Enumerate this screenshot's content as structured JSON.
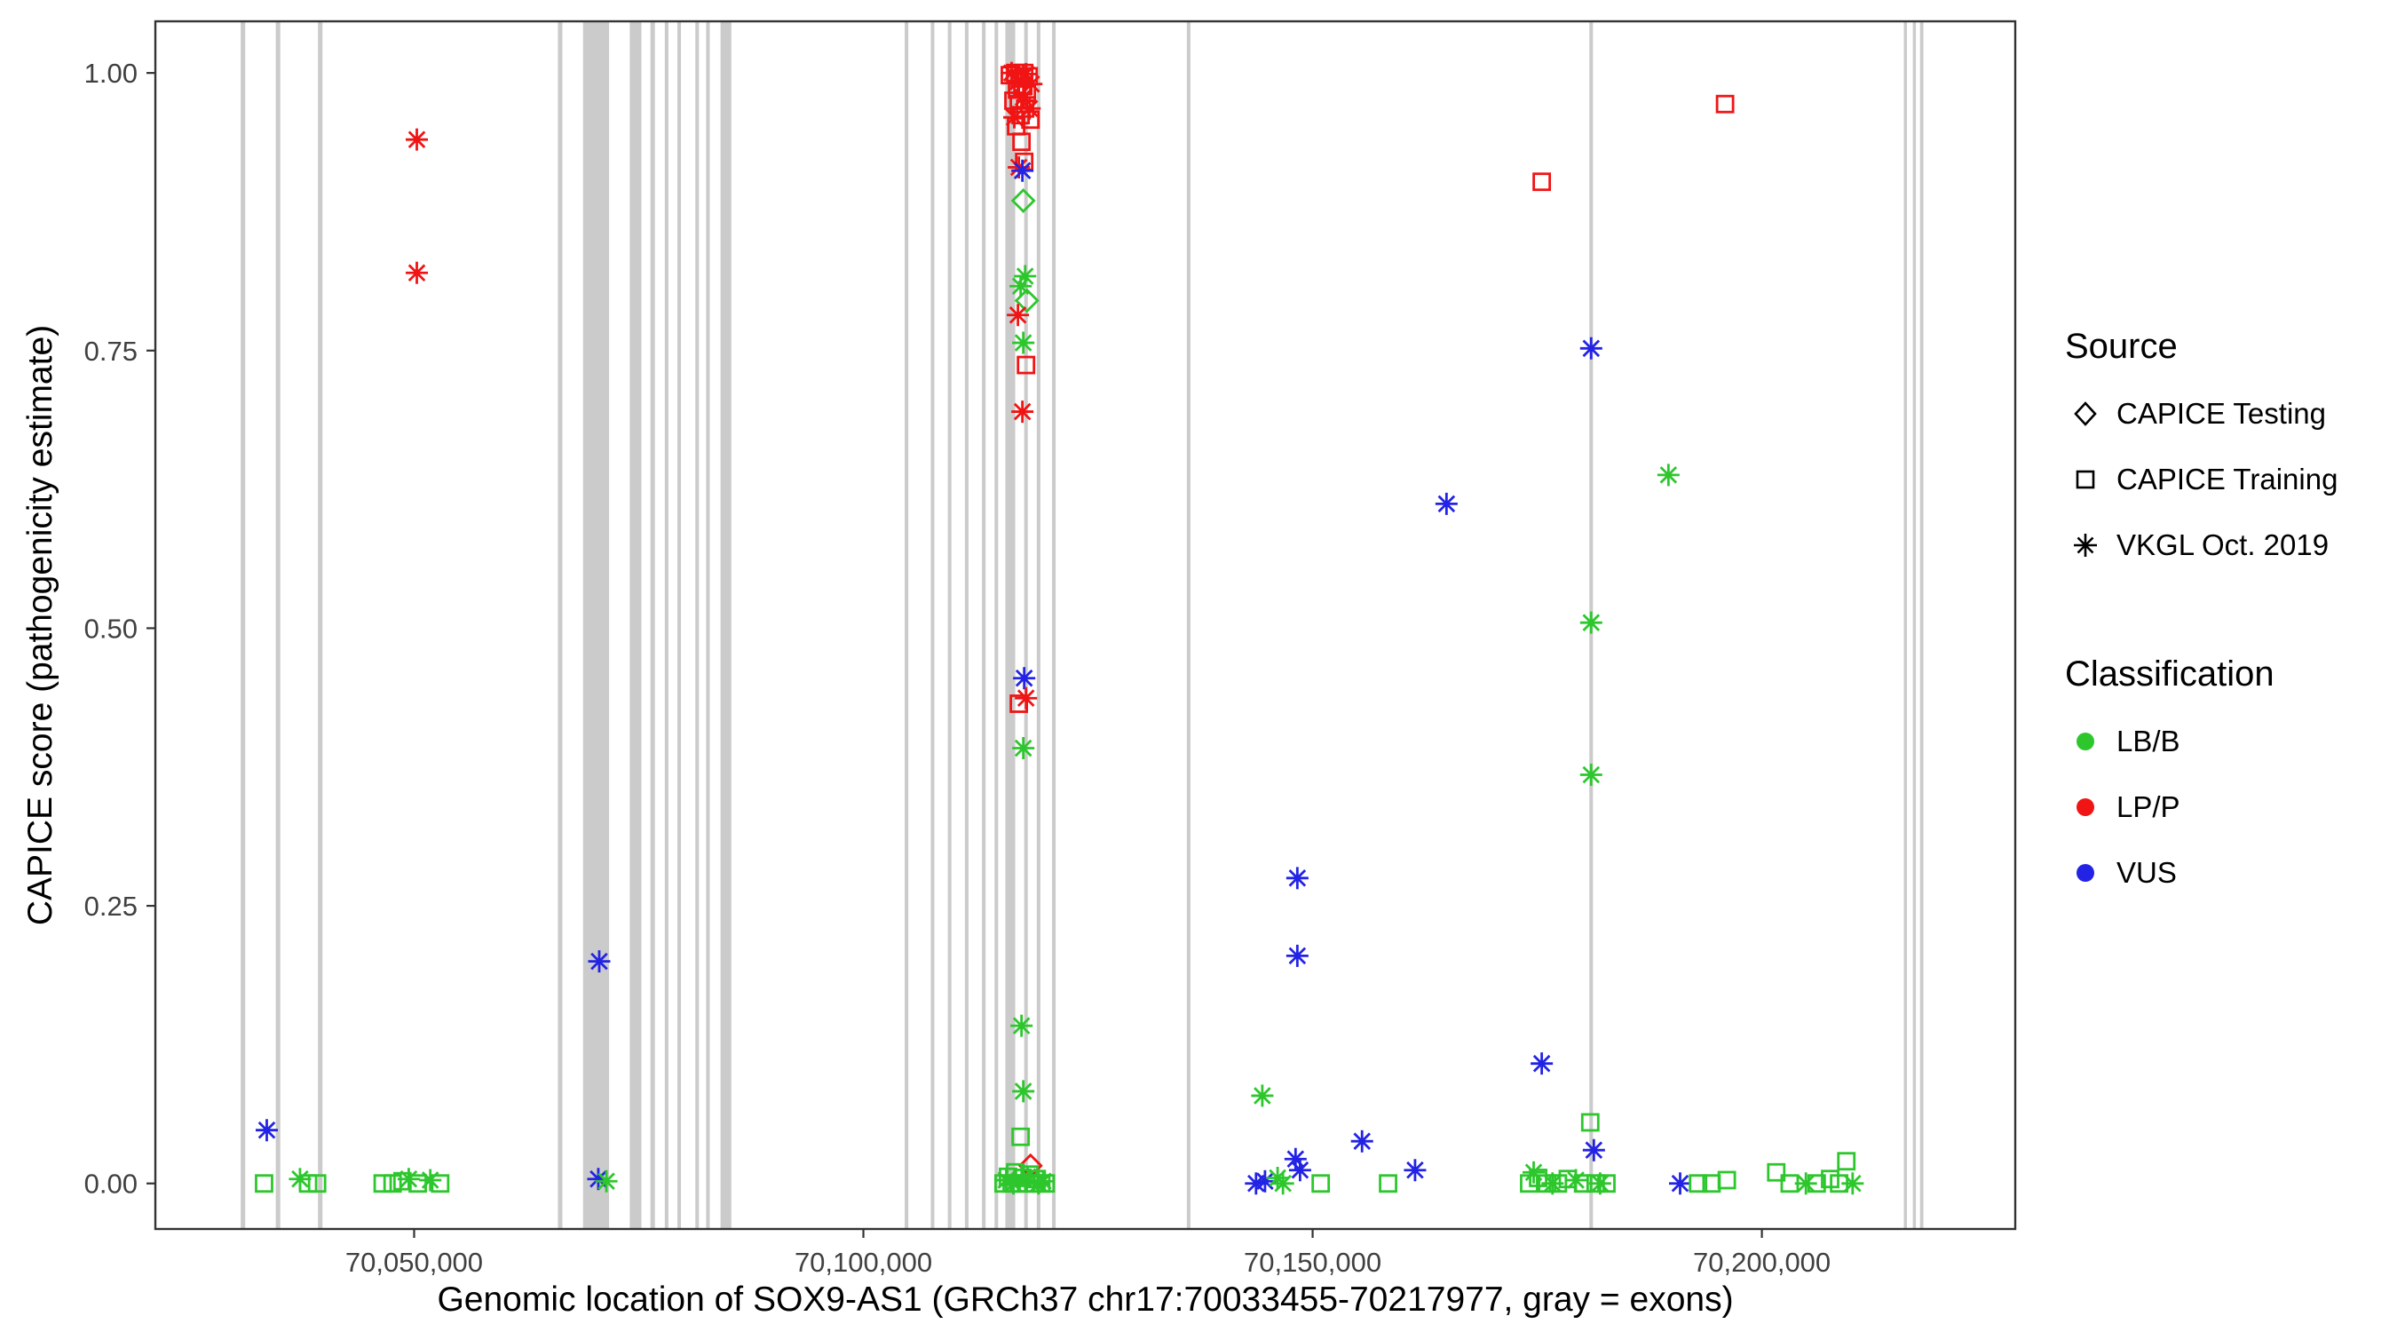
{
  "legend": {
    "source": {
      "title": "Source",
      "items": [
        {
          "label": "CAPICE Testing",
          "shape": "diamond"
        },
        {
          "label": "CAPICE Training",
          "shape": "square"
        },
        {
          "label": "VKGL Oct. 2019",
          "shape": "asterisk"
        }
      ]
    },
    "classification": {
      "title": "Classification",
      "items": [
        {
          "label": "LB/B",
          "color": "#2DC72D"
        },
        {
          "label": "LP/P",
          "color": "#F01414"
        },
        {
          "label": "VUS",
          "color": "#2323E6"
        }
      ]
    }
  },
  "encoding": {
    "shapes": {
      "test": "diamond",
      "train": "square",
      "vkgl": "asterisk"
    },
    "colors": {
      "LB/B": "#2DC72D",
      "LP/P": "#F01414",
      "VUS": "#2323E6"
    }
  },
  "chart_data": {
    "type": "scatter",
    "title": "",
    "xlabel": "Genomic location of SOX9-AS1 (GRCh37 chr17:70033455-70217977, gray = exons)",
    "ylabel": "CAPICE score (pathogenicity estimate)",
    "x_domain": [
      70021200,
      70228200
    ],
    "y_domain": [
      -0.041,
      1.0465
    ],
    "x_ticks": [
      {
        "v": 70050000,
        "label": "70,050,000"
      },
      {
        "v": 70100000,
        "label": "70,100,000"
      },
      {
        "v": 70150000,
        "label": "70,150,000"
      },
      {
        "v": 70200000,
        "label": "70,200,000"
      }
    ],
    "y_ticks": [
      {
        "v": 0.0,
        "label": "0.00"
      },
      {
        "v": 0.25,
        "label": "0.25"
      },
      {
        "v": 0.5,
        "label": "0.50"
      },
      {
        "v": 0.75,
        "label": "0.75"
      },
      {
        "v": 1.0,
        "label": "1.00"
      }
    ],
    "exon_color": "#CBCBCB",
    "exons": [
      [
        70030700,
        70031200
      ],
      [
        70034600,
        70035100
      ],
      [
        70039300,
        70039800
      ],
      [
        70066000,
        70066500
      ],
      [
        70068800,
        70071700
      ],
      [
        70074000,
        70075300
      ],
      [
        70076300,
        70076800
      ],
      [
        70077900,
        70078300
      ],
      [
        70079300,
        70079700
      ],
      [
        70081300,
        70081700
      ],
      [
        70082500,
        70082900
      ],
      [
        70084100,
        70085300
      ],
      [
        70104600,
        70105000
      ],
      [
        70107500,
        70107900
      ],
      [
        70109400,
        70109800
      ],
      [
        70111300,
        70111700
      ],
      [
        70113200,
        70113600
      ],
      [
        70114600,
        70115000
      ],
      [
        70115800,
        70116900
      ],
      [
        70117900,
        70118300
      ],
      [
        70119300,
        70119700
      ],
      [
        70121000,
        70121400
      ],
      [
        70136000,
        70136400
      ],
      [
        70180800,
        70181200
      ],
      [
        70215800,
        70216100
      ],
      [
        70216800,
        70217100
      ],
      [
        70217600,
        70217977
      ]
    ],
    "points": [
      [
        70033600,
        0.048,
        "vkgl",
        "VUS"
      ],
      [
        70033300,
        0.0,
        "train",
        "LB/B"
      ],
      [
        70037300,
        0.004,
        "vkgl",
        "LB/B"
      ],
      [
        70038200,
        0.0,
        "train",
        "LB/B"
      ],
      [
        70039200,
        0.0,
        "train",
        "LB/B"
      ],
      [
        70046500,
        0.0,
        "train",
        "LB/B"
      ],
      [
        70047600,
        0.0,
        "train",
        "LB/B"
      ],
      [
        70048700,
        0.002,
        "train",
        "LB/B"
      ],
      [
        70049400,
        0.004,
        "vkgl",
        "LB/B"
      ],
      [
        70050400,
        0.0,
        "train",
        "LB/B"
      ],
      [
        70051800,
        0.003,
        "vkgl",
        "LB/B"
      ],
      [
        70052900,
        0.0,
        "train",
        "LB/B"
      ],
      [
        70050300,
        0.94,
        "vkgl",
        "LP/P"
      ],
      [
        70050300,
        0.82,
        "vkgl",
        "LP/P"
      ],
      [
        70070600,
        0.2,
        "vkgl",
        "VUS"
      ],
      [
        70070500,
        0.004,
        "vkgl",
        "VUS"
      ],
      [
        70071400,
        0.002,
        "vkgl",
        "LB/B"
      ],
      [
        70116300,
        0.998,
        "train",
        "LP/P"
      ],
      [
        70116900,
        1.0,
        "train",
        "LP/P"
      ],
      [
        70117400,
        0.995,
        "train",
        "LP/P"
      ],
      [
        70117900,
        1.0,
        "train",
        "LP/P"
      ],
      [
        70118400,
        0.997,
        "train",
        "LP/P"
      ],
      [
        70117100,
        0.985,
        "train",
        "LP/P"
      ],
      [
        70117700,
        0.988,
        "train",
        "LP/P"
      ],
      [
        70118200,
        0.982,
        "train",
        "LP/P"
      ],
      [
        70116700,
        0.975,
        "train",
        "LP/P"
      ],
      [
        70117300,
        0.972,
        "train",
        "LP/P"
      ],
      [
        70118000,
        0.968,
        "train",
        "LP/P"
      ],
      [
        70117500,
        0.962,
        "train",
        "LP/P"
      ],
      [
        70118600,
        0.958,
        "train",
        "LP/P"
      ],
      [
        70117000,
        0.952,
        "train",
        "LP/P"
      ],
      [
        70116500,
        1.0,
        "vkgl",
        "LP/P"
      ],
      [
        70117200,
        0.992,
        "vkgl",
        "LP/P"
      ],
      [
        70118100,
        0.999,
        "vkgl",
        "LP/P"
      ],
      [
        70118700,
        0.99,
        "vkgl",
        "LP/P"
      ],
      [
        70117800,
        0.978,
        "vkgl",
        "LP/P"
      ],
      [
        70118500,
        0.968,
        "vkgl",
        "LP/P"
      ],
      [
        70116800,
        0.96,
        "vkgl",
        "LP/P"
      ],
      [
        70117600,
        0.938,
        "train",
        "LP/P"
      ],
      [
        70117900,
        0.92,
        "train",
        "LP/P"
      ],
      [
        70117300,
        0.915,
        "vkgl",
        "LP/P"
      ],
      [
        70117700,
        0.912,
        "vkgl",
        "VUS"
      ],
      [
        70117800,
        0.885,
        "test",
        "LB/B"
      ],
      [
        70118000,
        0.817,
        "vkgl",
        "LB/B"
      ],
      [
        70117500,
        0.808,
        "vkgl",
        "LB/B"
      ],
      [
        70118200,
        0.795,
        "test",
        "LB/B"
      ],
      [
        70117200,
        0.782,
        "vkgl",
        "LP/P"
      ],
      [
        70117800,
        0.757,
        "vkgl",
        "LB/B"
      ],
      [
        70118100,
        0.737,
        "train",
        "LP/P"
      ],
      [
        70117700,
        0.695,
        "vkgl",
        "LP/P"
      ],
      [
        70117900,
        0.455,
        "vkgl",
        "VUS"
      ],
      [
        70118100,
        0.437,
        "vkgl",
        "LP/P"
      ],
      [
        70117300,
        0.432,
        "train",
        "LP/P"
      ],
      [
        70117800,
        0.392,
        "vkgl",
        "LB/B"
      ],
      [
        70117600,
        0.142,
        "vkgl",
        "LB/B"
      ],
      [
        70117800,
        0.083,
        "vkgl",
        "LB/B"
      ],
      [
        70117500,
        0.042,
        "train",
        "LB/B"
      ],
      [
        70118600,
        0.016,
        "test",
        "LP/P"
      ],
      [
        70115600,
        0.0,
        "train",
        "LB/B"
      ],
      [
        70116100,
        0.006,
        "train",
        "LB/B"
      ],
      [
        70116500,
        0.0,
        "train",
        "LB/B"
      ],
      [
        70116900,
        0.01,
        "train",
        "LB/B"
      ],
      [
        70117300,
        0.0,
        "train",
        "LB/B"
      ],
      [
        70117700,
        0.005,
        "train",
        "LB/B"
      ],
      [
        70118100,
        0.0,
        "train",
        "LB/B"
      ],
      [
        70118500,
        0.008,
        "train",
        "LB/B"
      ],
      [
        70118900,
        0.0,
        "train",
        "LB/B"
      ],
      [
        70119300,
        0.004,
        "train",
        "LB/B"
      ],
      [
        70119800,
        0.0,
        "train",
        "LB/B"
      ],
      [
        70120300,
        0.0,
        "train",
        "LB/B"
      ],
      [
        70115900,
        0.003,
        "vkgl",
        "LB/B"
      ],
      [
        70116700,
        0.0,
        "vkgl",
        "LB/B"
      ],
      [
        70118300,
        0.006,
        "vkgl",
        "LB/B"
      ],
      [
        70119500,
        0.0,
        "vkgl",
        "LB/B"
      ],
      [
        70120000,
        0.002,
        "vkgl",
        "LB/B"
      ],
      [
        70164900,
        0.612,
        "vkgl",
        "VUS"
      ],
      [
        70181000,
        0.752,
        "vkgl",
        "VUS"
      ],
      [
        70189600,
        0.638,
        "vkgl",
        "LB/B"
      ],
      [
        70181000,
        0.505,
        "vkgl",
        "LB/B"
      ],
      [
        70181000,
        0.368,
        "vkgl",
        "LB/B"
      ],
      [
        70148300,
        0.275,
        "vkgl",
        "VUS"
      ],
      [
        70148300,
        0.205,
        "vkgl",
        "VUS"
      ],
      [
        70175500,
        0.108,
        "vkgl",
        "VUS"
      ],
      [
        70144400,
        0.079,
        "vkgl",
        "LB/B"
      ],
      [
        70155500,
        0.038,
        "vkgl",
        "VUS"
      ],
      [
        70195900,
        0.972,
        "train",
        "LP/P"
      ],
      [
        70175500,
        0.902,
        "train",
        "LP/P"
      ],
      [
        70180900,
        0.055,
        "train",
        "LB/B"
      ],
      [
        70181300,
        0.03,
        "vkgl",
        "VUS"
      ],
      [
        70148100,
        0.022,
        "vkgl",
        "VUS"
      ],
      [
        70148600,
        0.012,
        "vkgl",
        "VUS"
      ],
      [
        70161400,
        0.012,
        "vkgl",
        "VUS"
      ],
      [
        70143700,
        0.0,
        "vkgl",
        "VUS"
      ],
      [
        70144700,
        0.002,
        "vkgl",
        "VUS"
      ],
      [
        70146100,
        0.005,
        "vkgl",
        "LB/B"
      ],
      [
        70146700,
        0.0,
        "vkgl",
        "LB/B"
      ],
      [
        70150900,
        0.0,
        "train",
        "LB/B"
      ],
      [
        70158400,
        0.0,
        "train",
        "LB/B"
      ],
      [
        70174100,
        0.0,
        "train",
        "LB/B"
      ],
      [
        70175100,
        0.005,
        "train",
        "LB/B"
      ],
      [
        70176100,
        0.0,
        "train",
        "LB/B"
      ],
      [
        70177300,
        0.0,
        "train",
        "LB/B"
      ],
      [
        70178400,
        0.004,
        "train",
        "LB/B"
      ],
      [
        70180100,
        0.0,
        "train",
        "LB/B"
      ],
      [
        70181500,
        0.0,
        "train",
        "LB/B"
      ],
      [
        70182700,
        0.0,
        "train",
        "LB/B"
      ],
      [
        70174600,
        0.01,
        "vkgl",
        "LB/B"
      ],
      [
        70176700,
        0.0,
        "vkgl",
        "LB/B"
      ],
      [
        70179300,
        0.003,
        "vkgl",
        "LB/B"
      ],
      [
        70182000,
        0.0,
        "vkgl",
        "LB/B"
      ],
      [
        70190900,
        0.0,
        "vkgl",
        "VUS"
      ],
      [
        70192900,
        0.0,
        "train",
        "LB/B"
      ],
      [
        70194400,
        0.0,
        "train",
        "LB/B"
      ],
      [
        70196100,
        0.003,
        "train",
        "LB/B"
      ],
      [
        70201600,
        0.01,
        "train",
        "LB/B"
      ],
      [
        70203100,
        0.0,
        "train",
        "LB/B"
      ],
      [
        70204900,
        0.0,
        "vkgl",
        "LB/B"
      ],
      [
        70206100,
        0.0,
        "train",
        "LB/B"
      ],
      [
        70207600,
        0.004,
        "train",
        "LB/B"
      ],
      [
        70209400,
        0.02,
        "train",
        "LB/B"
      ],
      [
        70210100,
        0.0,
        "vkgl",
        "LB/B"
      ],
      [
        70208600,
        0.0,
        "train",
        "LB/B"
      ]
    ]
  }
}
